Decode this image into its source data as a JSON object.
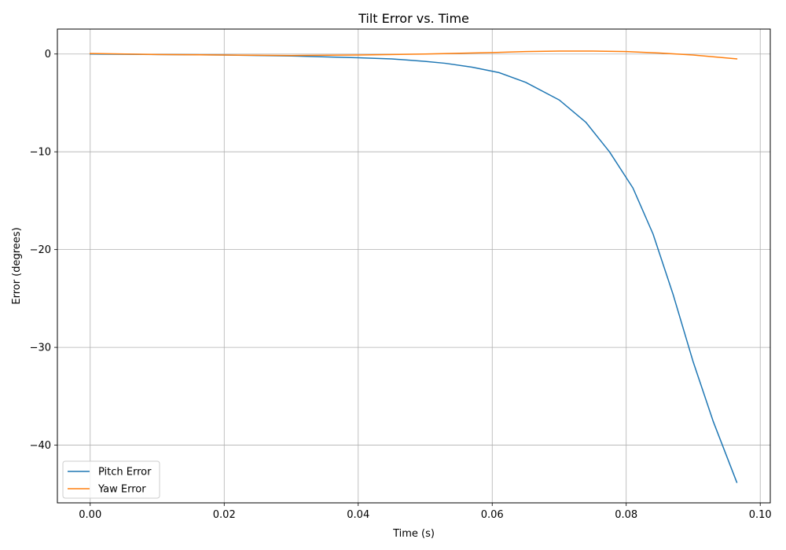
{
  "chart_data": {
    "type": "line",
    "title": "Tilt Error vs. Time",
    "xlabel": "Time (s)",
    "ylabel": "Error (degrees)",
    "xlim": [
      -0.0049,
      0.1015
    ],
    "ylim": [
      -45.9,
      2.55
    ],
    "xticks": [
      0.0,
      0.02,
      0.04,
      0.06,
      0.08,
      0.1
    ],
    "xtick_labels": [
      "0.00",
      "0.02",
      "0.04",
      "0.06",
      "0.08",
      "0.10"
    ],
    "yticks": [
      0,
      -10,
      -20,
      -30,
      -40
    ],
    "ytick_labels": [
      "0",
      "−10",
      "−20",
      "−30",
      "−40"
    ],
    "grid": true,
    "legend_position": "lower-left",
    "series": [
      {
        "name": "Pitch Error",
        "color": "#1f77b4",
        "x": [
          0.0,
          0.01,
          0.02,
          0.03,
          0.04,
          0.045,
          0.05,
          0.053,
          0.057,
          0.061,
          0.065,
          0.07,
          0.074,
          0.0775,
          0.081,
          0.084,
          0.087,
          0.09,
          0.093,
          0.0965
        ],
        "y": [
          0.0,
          -0.05,
          -0.1,
          -0.2,
          -0.38,
          -0.5,
          -0.75,
          -0.95,
          -1.35,
          -1.9,
          -2.9,
          -4.7,
          -7.0,
          -10.0,
          -13.7,
          -18.4,
          -24.6,
          -31.5,
          -37.6,
          -43.8
        ]
      },
      {
        "name": "Yaw Error",
        "color": "#ff7f0e",
        "x": [
          0.0,
          0.01,
          0.02,
          0.03,
          0.04,
          0.05,
          0.06,
          0.065,
          0.07,
          0.075,
          0.08,
          0.085,
          0.09,
          0.0965
        ],
        "y": [
          0.05,
          -0.05,
          -0.1,
          -0.15,
          -0.1,
          0.0,
          0.15,
          0.25,
          0.3,
          0.3,
          0.25,
          0.1,
          -0.1,
          -0.5
        ]
      }
    ]
  }
}
